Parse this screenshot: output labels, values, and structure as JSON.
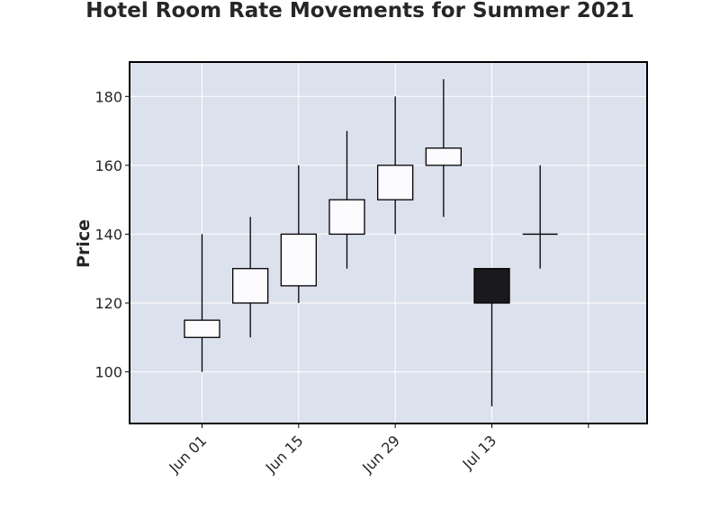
{
  "chart_data": {
    "type": "candlestick",
    "title": "Hotel Room Rate Movements for Summer 2021",
    "xlabel": "",
    "ylabel": "Price",
    "ylim": [
      85,
      190
    ],
    "xlim_days": [
      -10.5,
      64.5
    ],
    "x_tick_days": [
      0,
      14,
      28,
      42,
      56
    ],
    "x_tick_labels": [
      "Jun 01",
      "Jun 15",
      "Jun 29",
      "Jul 13",
      ""
    ],
    "y_ticks": [
      100,
      120,
      140,
      160,
      180
    ],
    "grid": true,
    "colors": {
      "plot_bg": "#dce1ee",
      "grid": "#ffffff",
      "up": "#fcfcfe",
      "down": "#1a1a1c",
      "edge": "#000000"
    },
    "candles": [
      {
        "date": "Jun 01",
        "open": 110,
        "high": 140,
        "low": 100,
        "close": 115
      },
      {
        "date": "Jun 08",
        "open": 120,
        "high": 145,
        "low": 110,
        "close": 130
      },
      {
        "date": "Jun 15",
        "open": 125,
        "high": 160,
        "low": 120,
        "close": 140
      },
      {
        "date": "Jun 22",
        "open": 140,
        "high": 170,
        "low": 130,
        "close": 150
      },
      {
        "date": "Jun 29",
        "open": 150,
        "high": 180,
        "low": 140,
        "close": 160
      },
      {
        "date": "Jul 06",
        "open": 160,
        "high": 185,
        "low": 145,
        "close": 165
      },
      {
        "date": "Jul 13",
        "open": 130,
        "high": 130,
        "low": 90,
        "close": 120
      },
      {
        "date": "Jul 20",
        "open": 140,
        "high": 160,
        "low": 130,
        "close": 140
      }
    ]
  }
}
